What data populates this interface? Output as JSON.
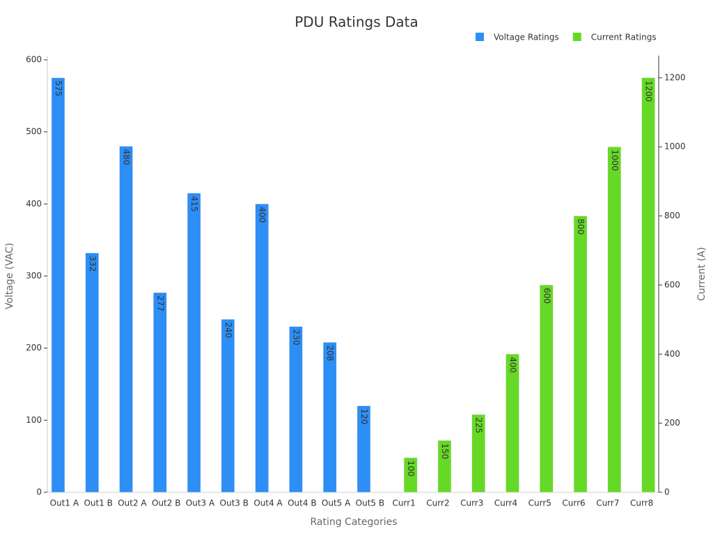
{
  "chart_data": {
    "type": "bar",
    "title": "PDU Ratings Data",
    "x_label": "Rating Categories",
    "y_label": "Voltage (VAC)",
    "y2_label": "Current (A)",
    "categories": [
      "Out1 A",
      "Out1 B",
      "Out2 A",
      "Out2 B",
      "Out3 A",
      "Out3 B",
      "Out4 A",
      "Out4 B",
      "Out5 A",
      "Out5 B",
      "Curr1",
      "Curr2",
      "Curr3",
      "Curr4",
      "Curr5",
      "Curr6",
      "Curr7",
      "Curr8"
    ],
    "series": [
      {
        "name": "Voltage Ratings",
        "color": "#2d8ef5",
        "axis": "y",
        "values": [
          575,
          332,
          480,
          277,
          415,
          240,
          400,
          230,
          208,
          120,
          null,
          null,
          null,
          null,
          null,
          null,
          null,
          null
        ]
      },
      {
        "name": "Current Ratings",
        "color": "#66d926",
        "axis": "y2",
        "values": [
          null,
          null,
          null,
          null,
          null,
          null,
          null,
          null,
          null,
          null,
          100,
          150,
          225,
          400,
          600,
          800,
          1000,
          1200
        ]
      }
    ],
    "ylim": [
      0,
      600
    ],
    "yticks": [
      0,
      100,
      200,
      300,
      400,
      500,
      600
    ],
    "y2lim": [
      0,
      1252
    ],
    "y2ticks": [
      0,
      200,
      400,
      600,
      800,
      1000,
      1200
    ],
    "legend": "top-right",
    "grid": false
  }
}
